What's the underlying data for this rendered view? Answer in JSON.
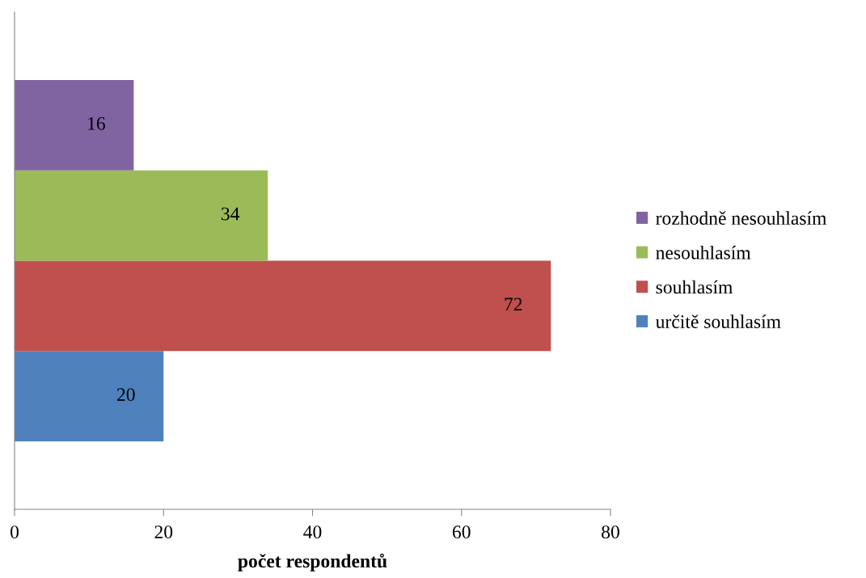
{
  "chart_data": {
    "type": "bar",
    "orientation": "horizontal",
    "xlabel": "počet respondentů",
    "categories": [
      null
    ],
    "series": [
      {
        "name": "určitě souhlasím",
        "color": "#4f81bd",
        "values": [
          20
        ]
      },
      {
        "name": "souhlasím",
        "color": "#c0504d",
        "values": [
          72
        ]
      },
      {
        "name": "nesouhlasím",
        "color": "#9bbb59",
        "values": [
          34
        ]
      },
      {
        "name": "rozhodně nesouhlasím",
        "color": "#8064a2",
        "values": [
          16
        ]
      }
    ],
    "xlim": [
      0,
      80
    ],
    "xticks": [
      0,
      20,
      40,
      60,
      80
    ],
    "grid": false,
    "legend": "right",
    "data_labels": true
  }
}
